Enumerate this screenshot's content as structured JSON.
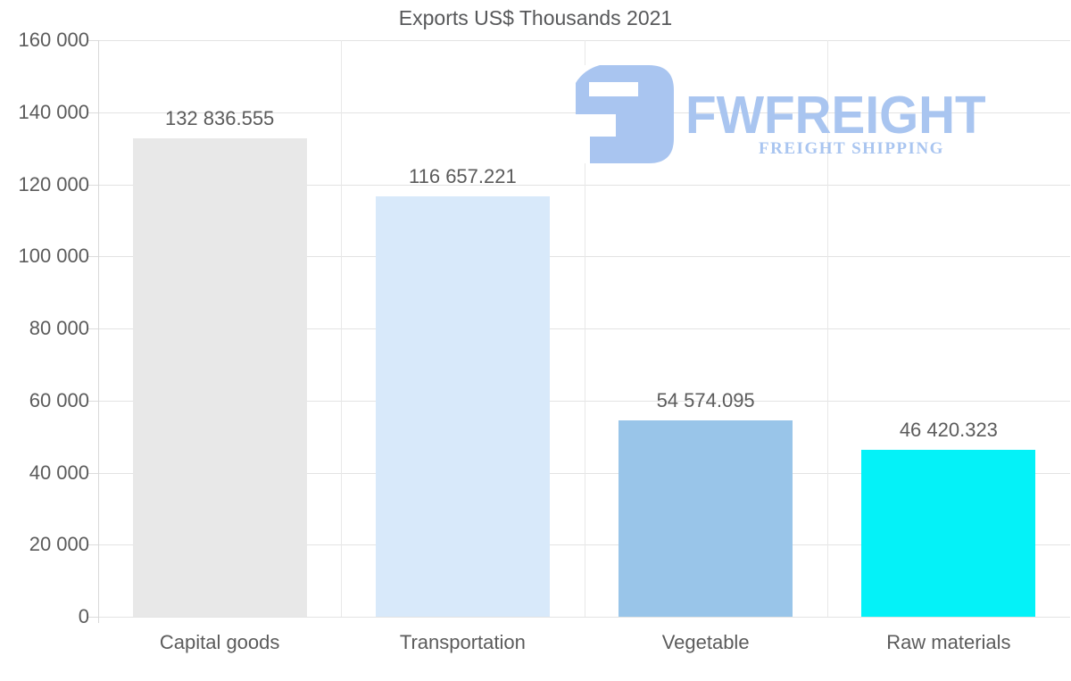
{
  "title": "Exports US$ Thousands 2021",
  "watermark": {
    "brand": "FWFREIGHT",
    "tagline": "FREIGHT SHIPPING",
    "color": "#a9c5f0"
  },
  "colors": {
    "background": "#ffffff",
    "gridline": "#e3e3e3",
    "axis": "#d9d9d9",
    "text": "#5b5b5b",
    "title_text": "#57585a"
  },
  "chart_data": {
    "type": "bar",
    "title": "Exports US$ Thousands 2021",
    "categories": [
      "Capital goods",
      "Transportation",
      "Vegetable",
      "Raw materials"
    ],
    "values": [
      132836.555,
      116657.221,
      54574.095,
      46420.323
    ],
    "value_labels": [
      "132 836.555",
      "116 657.221",
      "54 574.095",
      "46 420.323"
    ],
    "bar_colors": [
      "#e8e8e8",
      "#d8e9fa",
      "#99c5e9",
      "#04f2f8"
    ],
    "xlabel": "",
    "ylabel": "",
    "ylim": [
      0,
      160000
    ],
    "ytick_step": 20000,
    "ytick_labels": [
      "0",
      "20 000",
      "40 000",
      "60 000",
      "80 000",
      "100 000",
      "120 000",
      "140 000",
      "160 000"
    ],
    "grid": true,
    "legend_position": "none"
  }
}
